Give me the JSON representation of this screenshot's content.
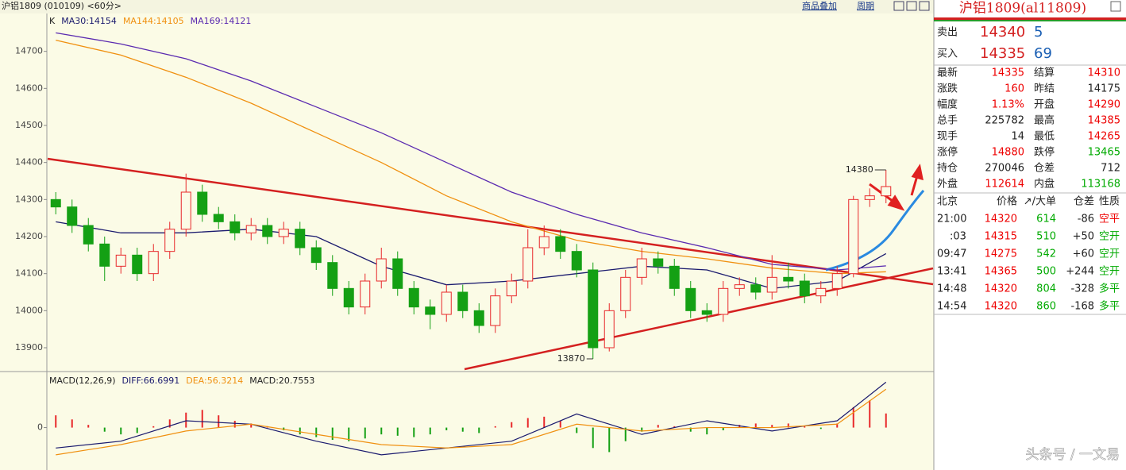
{
  "header": {
    "title": "沪铝1809 (010109) <60分>",
    "buttons": [
      "商品叠加",
      "周期"
    ]
  },
  "chart_data": {
    "type": "candlestick",
    "label_k": "K",
    "open": [
      14300,
      14280,
      14230,
      14180,
      14120,
      14150,
      14100,
      14160,
      14220,
      14320,
      14260,
      14240,
      14210,
      14230,
      14200,
      14220,
      14170,
      14130,
      14060,
      14010,
      14080,
      14140,
      14060,
      14010,
      13990,
      14050,
      14000,
      13960,
      14040,
      14080,
      14170,
      14200,
      14160,
      14110,
      13900,
      14000,
      14090,
      14140,
      14120,
      14060,
      14000,
      13990,
      14060,
      14070,
      14050,
      14090,
      14080,
      14040,
      14060,
      14100,
      14300,
      14310
    ],
    "high": [
      14320,
      14300,
      14250,
      14200,
      14170,
      14170,
      14180,
      14240,
      14370,
      14340,
      14280,
      14260,
      14250,
      14250,
      14240,
      14240,
      14190,
      14150,
      14080,
      14100,
      14170,
      14160,
      14080,
      14030,
      14070,
      14070,
      14020,
      14060,
      14100,
      14220,
      14230,
      14220,
      14180,
      14130,
      14020,
      14110,
      14170,
      14160,
      14140,
      14080,
      14020,
      14080,
      14090,
      14090,
      14150,
      14130,
      14100,
      14080,
      14120,
      14310,
      14330,
      14380
    ],
    "low": [
      14260,
      14210,
      14160,
      14080,
      14100,
      14080,
      14080,
      14140,
      14200,
      14240,
      14220,
      14190,
      14190,
      14180,
      14180,
      14150,
      14110,
      14040,
      13990,
      13990,
      14060,
      14040,
      13990,
      13950,
      13970,
      13980,
      13940,
      13940,
      14020,
      14060,
      14150,
      14140,
      14090,
      13870,
      13890,
      13980,
      14070,
      14100,
      14040,
      13980,
      13970,
      13970,
      14040,
      14030,
      14030,
      14060,
      14020,
      14020,
      14040,
      14090,
      14280,
      14290
    ],
    "close": [
      14280,
      14230,
      14180,
      14120,
      14150,
      14100,
      14160,
      14220,
      14320,
      14260,
      14240,
      14210,
      14230,
      14200,
      14220,
      14170,
      14130,
      14060,
      14010,
      14080,
      14140,
      14060,
      14010,
      13990,
      14050,
      14000,
      13960,
      14040,
      14080,
      14170,
      14200,
      14160,
      14110,
      13900,
      14000,
      14090,
      14140,
      14120,
      14060,
      14000,
      13990,
      14060,
      14070,
      14050,
      14090,
      14080,
      14040,
      14060,
      14100,
      14300,
      14310,
      14335
    ],
    "up_color": "#e8282a",
    "down_color": "#14a014",
    "ylim": [
      13840,
      14800
    ],
    "yticks": [
      13900,
      14000,
      14100,
      14200,
      14300,
      14400,
      14500,
      14600,
      14700
    ],
    "series": [
      {
        "name": "MA30:14154",
        "color": "#1a1a6e",
        "x": [
          0,
          4,
          8,
          12,
          16,
          20,
          24,
          28,
          32,
          36,
          40,
          44,
          48,
          51
        ],
        "values": [
          14240,
          14210,
          14210,
          14220,
          14200,
          14120,
          14070,
          14080,
          14100,
          14120,
          14110,
          14060,
          14080,
          14154
        ]
      },
      {
        "name": "MA144:14105",
        "color": "#f09010",
        "x": [
          0,
          4,
          8,
          12,
          16,
          20,
          24,
          28,
          32,
          36,
          40,
          44,
          48,
          51
        ],
        "values": [
          14730,
          14690,
          14630,
          14560,
          14480,
          14400,
          14310,
          14240,
          14190,
          14160,
          14140,
          14115,
          14100,
          14105
        ]
      },
      {
        "name": "MA169:14121",
        "color": "#5a2ab0",
        "x": [
          0,
          4,
          8,
          12,
          16,
          20,
          24,
          28,
          32,
          36,
          40,
          44,
          48,
          51
        ],
        "values": [
          14750,
          14720,
          14680,
          14620,
          14550,
          14480,
          14400,
          14320,
          14260,
          14210,
          14170,
          14125,
          14110,
          14121
        ]
      }
    ],
    "annotations": [
      "14380",
      "13870"
    ],
    "indicator": {
      "title": "MACD(12,26,9)",
      "ylim": [
        -60,
        80
      ],
      "yticks": [
        0
      ],
      "histogram": {
        "name": "MACD:20.7553",
        "up_color": "#e8282a",
        "down_color": "#14a014",
        "values": [
          18,
          12,
          4,
          -6,
          -10,
          -8,
          2,
          12,
          22,
          26,
          18,
          10,
          6,
          2,
          -4,
          -10,
          -14,
          -18,
          -20,
          -16,
          -10,
          -12,
          -14,
          -10,
          -4,
          -6,
          -8,
          2,
          8,
          14,
          16,
          10,
          -8,
          -30,
          -36,
          -20,
          -6,
          4,
          2,
          -6,
          -10,
          -4,
          4,
          6,
          4,
          6,
          2,
          -2,
          6,
          30,
          40,
          20.7553
        ]
      },
      "series": [
        {
          "name": "DIFF:66.6991",
          "color": "#1a1a6e",
          "x": [
            0,
            4,
            8,
            12,
            16,
            20,
            24,
            28,
            32,
            36,
            40,
            44,
            48,
            51
          ],
          "values": [
            -30,
            -20,
            10,
            5,
            -20,
            -40,
            -30,
            -20,
            20,
            -10,
            10,
            -5,
            10,
            66.6991
          ]
        },
        {
          "name": "DEA:56.3214",
          "color": "#f09010",
          "x": [
            0,
            4,
            8,
            12,
            16,
            20,
            24,
            28,
            32,
            36,
            40,
            44,
            48,
            51
          ],
          "values": [
            -40,
            -25,
            -5,
            5,
            -10,
            -25,
            -30,
            -25,
            5,
            -5,
            0,
            0,
            5,
            56.3214
          ]
        }
      ]
    }
  },
  "quote_panel": {
    "title": "沪铝1809(al11809)",
    "orders": [
      {
        "label": "卖出",
        "price": "14340",
        "volume": "5",
        "color": "#1a5fb4"
      },
      {
        "label": "买入",
        "price": "14335",
        "volume": "69",
        "color": "#1a5fb4"
      }
    ],
    "rows": [
      {
        "label": "最新",
        "value": "14335",
        "color": "#e00",
        "label2": "结算",
        "value2": "14310",
        "color2": "#e00"
      },
      {
        "label": "涨跌",
        "value": "160",
        "color": "#e00",
        "label2": "昨结",
        "value2": "14175",
        "color2": "#222"
      },
      {
        "label": "幅度",
        "value": "1.13%",
        "color": "#e00",
        "label2": "开盘",
        "value2": "14290",
        "color2": "#e00"
      },
      {
        "label": "总手",
        "value": "225782",
        "color": "#222",
        "label2": "最高",
        "value2": "14385",
        "color2": "#e00"
      },
      {
        "label": "现手",
        "value": "14",
        "color": "#222",
        "label2": "最低",
        "value2": "14265",
        "color2": "#e00"
      },
      {
        "label": "涨停",
        "value": "14880",
        "color": "#e00",
        "label2": "跌停",
        "value2": "13465",
        "color2": "#0a0"
      },
      {
        "label": "持仓",
        "value": "270046",
        "color": "#222",
        "label2": "仓差",
        "value2": "712",
        "color2": "#222"
      },
      {
        "label": "外盘",
        "value": "112614",
        "color": "#e00",
        "label2": "内盘",
        "value2": "113168",
        "color2": "#0a0"
      }
    ],
    "trade_header": [
      "北京",
      "价格",
      "↗/大单",
      "仓差",
      "性质"
    ],
    "trades": [
      {
        "time": "21:00",
        "price": "14320",
        "volume": "614",
        "change": "-86",
        "nature": "空平",
        "nature_color": "#e00"
      },
      {
        "time": ":03",
        "price": "14315",
        "volume": "510",
        "change": "+50",
        "nature": "空开",
        "nature_color": "#0a0"
      },
      {
        "time": "09:47",
        "price": "14275",
        "volume": "542",
        "change": "+60",
        "nature": "空开",
        "nature_color": "#0a0"
      },
      {
        "time": "13:41",
        "price": "14365",
        "volume": "500",
        "change": "+244",
        "nature": "空开",
        "nature_color": "#0a0"
      },
      {
        "time": "14:48",
        "price": "14320",
        "volume": "804",
        "change": "-328",
        "nature": "多平",
        "nature_color": "#0a0"
      },
      {
        "time": "14:54",
        "price": "14320",
        "volume": "860",
        "change": "-168",
        "nature": "多平",
        "nature_color": "#0a0"
      }
    ]
  },
  "watermark": "头条号 / 一文易"
}
